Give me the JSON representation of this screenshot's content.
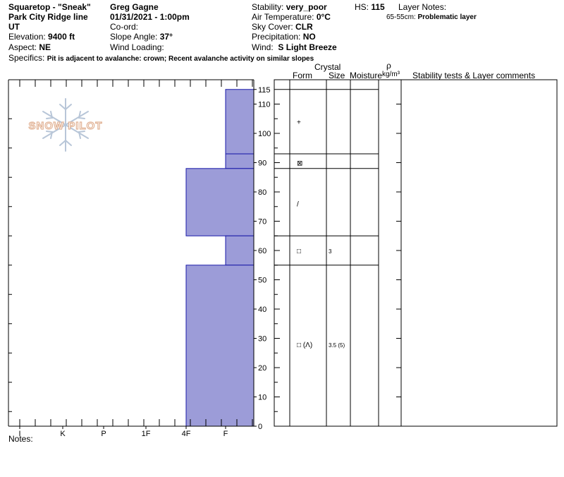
{
  "header": {
    "location_name": "Squaretop - \"Sneak\"",
    "sub_location": "Park City Ridge line",
    "state": "UT",
    "elevation_label": "Elevation:",
    "elevation_value": "9400 ft",
    "aspect_label": "Aspect:",
    "aspect_value": "NE",
    "observer": "Greg Gagne",
    "datetime": "01/31/2021 - 1:00pm",
    "coord_label": "Co-ord:",
    "slope_label": "Slope Angle:",
    "slope_value": "37°",
    "wind_loading_label": "Wind Loading:",
    "stability_label": "Stability:",
    "stability_value": "very_poor",
    "air_temp_label": "Air Temperature:",
    "air_temp_value": "0°C",
    "sky_label": "Sky Cover:",
    "sky_value": "CLR",
    "precip_label": "Precipitation:",
    "precip_value": "NO",
    "wind_label": "Wind:",
    "wind_value": "S Light Breeze",
    "hs_label": "HS:",
    "hs_value": "115",
    "layer_notes_label": "Layer Notes:",
    "layer_note_range": "65-55cm:",
    "layer_note_text": "Problematic layer",
    "specifics_label": "Specifics:",
    "specifics_value": "Pit is adjacent to avalanche: crown;  Recent avalanche activity on similar slopes"
  },
  "columns": {
    "form": "Form",
    "crystal": "Crystal",
    "size": "Size",
    "moisture": "Moisture",
    "rho": "ρ",
    "density_unit": "kg/m³",
    "comments": "Stability tests & Layer comments"
  },
  "watermark": "SNOW PILOT",
  "notes_label": "Notes:",
  "colors": {
    "hardness_fill": "#9c9cd8",
    "hardness_edge": "#1a1aa8",
    "watermark": "#e8c4a8",
    "flake": "#b8c6d8"
  },
  "chart_data": {
    "type": "bar",
    "orientation": "horizontal",
    "x_axis": {
      "categories": [
        "I",
        "K",
        "P",
        "1F",
        "4F",
        "F"
      ]
    },
    "y_axis": {
      "range": [
        0,
        115
      ],
      "ticks": [
        0,
        10,
        20,
        30,
        40,
        50,
        60,
        70,
        80,
        90,
        100,
        110,
        115
      ]
    },
    "layers": [
      {
        "top": 115,
        "bottom": 93,
        "hardness": "F"
      },
      {
        "top": 93,
        "bottom": 88,
        "hardness": "F"
      },
      {
        "top": 88,
        "bottom": 65,
        "hardness": "4F"
      },
      {
        "top": 65,
        "bottom": 55,
        "hardness": "F"
      },
      {
        "top": 55,
        "bottom": 0,
        "hardness": "4F"
      }
    ],
    "grain_rows": [
      {
        "height": 104,
        "form": "+",
        "size": ""
      },
      {
        "height": 90,
        "form": "⊠",
        "size": ""
      },
      {
        "height": 76,
        "form": "/",
        "size": ""
      },
      {
        "height": 60,
        "form": "□",
        "size": "3"
      },
      {
        "height": 28,
        "form": "□ (Λ)",
        "size": "3.5 (5)"
      }
    ]
  }
}
